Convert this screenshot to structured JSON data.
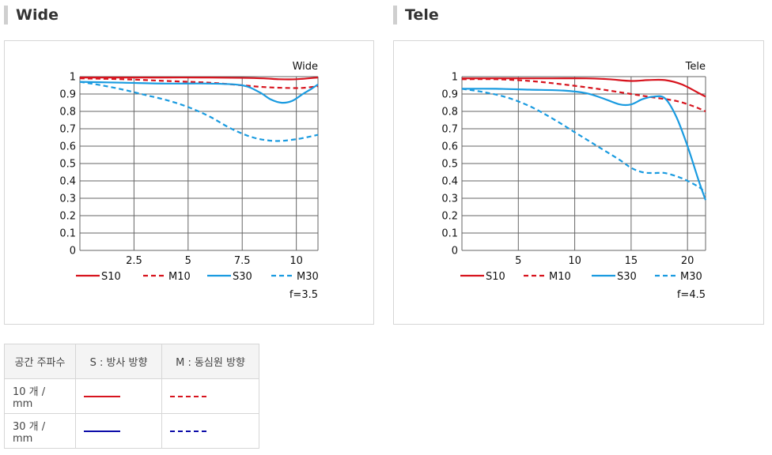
{
  "sections": {
    "wide": {
      "heading": "Wide"
    },
    "tele": {
      "heading": "Tele"
    }
  },
  "colors": {
    "red": "#d7141e",
    "blue": "#1a9be0",
    "table_solid": "#d7141e",
    "table_blue": "#0a0aa8",
    "grid": "#666666"
  },
  "chart_data": [
    {
      "type": "line",
      "title": "Wide",
      "footnote": "f=3.5",
      "xlim": [
        0,
        11
      ],
      "ylim": [
        0,
        1
      ],
      "xticks": [
        2.5,
        5,
        7.5,
        10
      ],
      "xtick_labels": [
        "2.5",
        "5",
        "7.5",
        "10"
      ],
      "yticks": [
        0,
        0.1,
        0.2,
        0.3,
        0.4,
        0.5,
        0.6,
        0.7,
        0.8,
        0.9,
        1
      ],
      "ytick_labels": [
        "0",
        "0.1",
        "0.2",
        "0.3",
        "0.4",
        "0.5",
        "0.6",
        "0.7",
        "0.8",
        "0.9",
        "1"
      ],
      "grid": true,
      "legend_position": "bottom",
      "series": [
        {
          "name": "S10",
          "style": "solid",
          "color": "red",
          "x": [
            0,
            2,
            4,
            6,
            7.5,
            8.5,
            9.2,
            10,
            11
          ],
          "y": [
            0.995,
            0.995,
            0.995,
            0.995,
            0.993,
            0.99,
            0.985,
            0.985,
            0.995
          ]
        },
        {
          "name": "M10",
          "style": "dashed",
          "color": "red",
          "x": [
            0,
            2,
            4,
            6,
            7.5,
            8.5,
            9.5,
            10.3,
            11
          ],
          "y": [
            0.99,
            0.985,
            0.975,
            0.965,
            0.95,
            0.94,
            0.935,
            0.935,
            0.945
          ]
        },
        {
          "name": "S30",
          "style": "solid",
          "color": "blue",
          "x": [
            0,
            2,
            4,
            6,
            7.5,
            8.3,
            8.8,
            9.3,
            9.8,
            10.3,
            10.7,
            11
          ],
          "y": [
            0.97,
            0.965,
            0.96,
            0.96,
            0.95,
            0.91,
            0.87,
            0.85,
            0.86,
            0.9,
            0.93,
            0.955
          ]
        },
        {
          "name": "M30",
          "style": "dashed",
          "color": "blue",
          "x": [
            0,
            1,
            2,
            3,
            4,
            5,
            6,
            7,
            8,
            9,
            10,
            11
          ],
          "y": [
            0.97,
            0.95,
            0.925,
            0.895,
            0.865,
            0.825,
            0.77,
            0.7,
            0.65,
            0.63,
            0.64,
            0.665
          ]
        }
      ]
    },
    {
      "type": "line",
      "title": "Tele",
      "footnote": "f=4.5",
      "xlim": [
        0,
        21.6
      ],
      "ylim": [
        0,
        1
      ],
      "xticks": [
        5,
        10,
        15,
        20
      ],
      "xtick_labels": [
        "5",
        "10",
        "15",
        "20"
      ],
      "yticks": [
        0,
        0.1,
        0.2,
        0.3,
        0.4,
        0.5,
        0.6,
        0.7,
        0.8,
        0.9,
        1
      ],
      "ytick_labels": [
        "0",
        "0.1",
        "0.2",
        "0.3",
        "0.4",
        "0.5",
        "0.6",
        "0.7",
        "0.8",
        "0.9",
        "1"
      ],
      "grid": true,
      "legend_position": "bottom",
      "series": [
        {
          "name": "S10",
          "style": "solid",
          "color": "red",
          "x": [
            0,
            4,
            8,
            11,
            13,
            15,
            16.5,
            18,
            19.5,
            21,
            21.6
          ],
          "y": [
            0.99,
            0.99,
            0.99,
            0.99,
            0.985,
            0.975,
            0.98,
            0.98,
            0.955,
            0.905,
            0.885
          ]
        },
        {
          "name": "M10",
          "style": "dashed",
          "color": "red",
          "x": [
            0,
            3,
            6,
            9,
            12,
            15,
            17,
            19,
            20.5,
            21.6
          ],
          "y": [
            0.985,
            0.985,
            0.975,
            0.955,
            0.93,
            0.9,
            0.88,
            0.86,
            0.83,
            0.8
          ]
        },
        {
          "name": "S30",
          "style": "solid",
          "color": "blue",
          "x": [
            0,
            3,
            6,
            9,
            11,
            12.5,
            14,
            15,
            16,
            17,
            18,
            19,
            20,
            21,
            21.6
          ],
          "y": [
            0.93,
            0.93,
            0.925,
            0.92,
            0.905,
            0.875,
            0.84,
            0.84,
            0.87,
            0.885,
            0.875,
            0.77,
            0.6,
            0.4,
            0.29
          ]
        },
        {
          "name": "M30",
          "style": "dashed",
          "color": "blue",
          "x": [
            0,
            2,
            4,
            6,
            8,
            10,
            12,
            14,
            15,
            16,
            17,
            18,
            19.5,
            21,
            21.6
          ],
          "y": [
            0.93,
            0.91,
            0.88,
            0.83,
            0.76,
            0.68,
            0.6,
            0.52,
            0.475,
            0.45,
            0.445,
            0.445,
            0.415,
            0.365,
            0.33
          ]
        }
      ]
    }
  ],
  "table": {
    "headers": [
      "공간 주파수",
      "S : 방사 방향",
      "M : 동심원 방향"
    ],
    "rows": [
      {
        "label": "10 개 / mm"
      },
      {
        "label": "30 개 / mm"
      }
    ]
  }
}
